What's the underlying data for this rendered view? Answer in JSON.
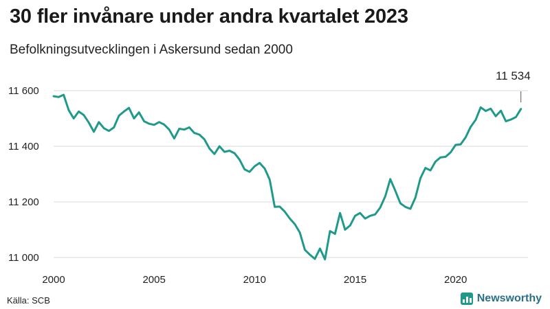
{
  "header": {
    "title": "30 fler invånare under andra kvartalet 2023",
    "subtitle": "Befolkningsutvecklingen i Askersund sedan 2000"
  },
  "footer": {
    "source": "Källa: SCB",
    "brand": "Newsworthy",
    "brand_icon": "bar-chart-logo-icon"
  },
  "colors": {
    "line": "#1f9a8a",
    "grid": "#d9d9d9",
    "brand": "#2a6f88"
  },
  "chart_data": {
    "type": "line",
    "title": "30 fler invånare under andra kvartalet 2023",
    "subtitle": "Befolkningsutvecklingen i Askersund sedan 2000",
    "xlabel": "",
    "ylabel": "",
    "xlim": [
      2000,
      2023.5
    ],
    "ylim": [
      11000,
      11650
    ],
    "x_ticks": [
      2000,
      2005,
      2010,
      2015,
      2020
    ],
    "x_tick_labels": [
      "2000",
      "2005",
      "2010",
      "2015",
      "2020"
    ],
    "y_ticks": [
      11000,
      11200,
      11400,
      11600
    ],
    "y_tick_labels": [
      "11 000",
      "11 200",
      "11 400",
      "11 600"
    ],
    "grid": true,
    "annotation": {
      "text": "11 534",
      "x": 2023.25,
      "y": 11534
    },
    "series": [
      {
        "x": [
          2000,
          2000.25,
          2000.5,
          2000.75,
          2001,
          2001.25,
          2001.5,
          2001.75,
          2002,
          2002.25,
          2002.5,
          2002.75,
          2003,
          2003.25,
          2003.5,
          2003.75,
          2004,
          2004.25,
          2004.5,
          2004.75,
          2005,
          2005.25,
          2005.5,
          2005.75,
          2006,
          2006.25,
          2006.5,
          2006.75,
          2007,
          2007.25,
          2007.5,
          2007.75,
          2008,
          2008.25,
          2008.5,
          2008.75,
          2009,
          2009.25,
          2009.5,
          2009.75,
          2010,
          2010.25,
          2010.5,
          2010.75,
          2011,
          2011.25,
          2011.5,
          2011.75,
          2012,
          2012.25,
          2012.5,
          2012.75,
          2013,
          2013.25,
          2013.5,
          2013.75,
          2014,
          2014.25,
          2014.5,
          2014.75,
          2015,
          2015.25,
          2015.5,
          2015.75,
          2016,
          2016.25,
          2016.5,
          2016.75,
          2017,
          2017.25,
          2017.5,
          2017.75,
          2018,
          2018.25,
          2018.5,
          2018.75,
          2019,
          2019.25,
          2019.5,
          2019.75,
          2020,
          2020.25,
          2020.5,
          2020.75,
          2021,
          2021.25,
          2021.5,
          2021.75,
          2022,
          2022.25,
          2022.5,
          2022.75,
          2023,
          2023.25
        ],
        "values": [
          11580,
          11577,
          11585,
          11530,
          11500,
          11525,
          11512,
          11485,
          11452,
          11487,
          11465,
          11455,
          11468,
          11510,
          11525,
          11538,
          11500,
          11522,
          11490,
          11481,
          11477,
          11487,
          11478,
          11460,
          11428,
          11463,
          11460,
          11468,
          11448,
          11442,
          11425,
          11392,
          11372,
          11400,
          11380,
          11384,
          11375,
          11352,
          11317,
          11308,
          11328,
          11340,
          11320,
          11280,
          11182,
          11183,
          11165,
          11140,
          11120,
          11090,
          11028,
          11010,
          10995,
          11032,
          10993,
          11095,
          11085,
          11160,
          11100,
          11115,
          11150,
          11160,
          11140,
          11150,
          11155,
          11180,
          11220,
          11282,
          11240,
          11195,
          11182,
          11175,
          11215,
          11285,
          11322,
          11313,
          11345,
          11360,
          11362,
          11378,
          11405,
          11407,
          11432,
          11470,
          11495,
          11540,
          11527,
          11535,
          11508,
          11528,
          11490,
          11496,
          11505,
          11534
        ]
      }
    ]
  }
}
